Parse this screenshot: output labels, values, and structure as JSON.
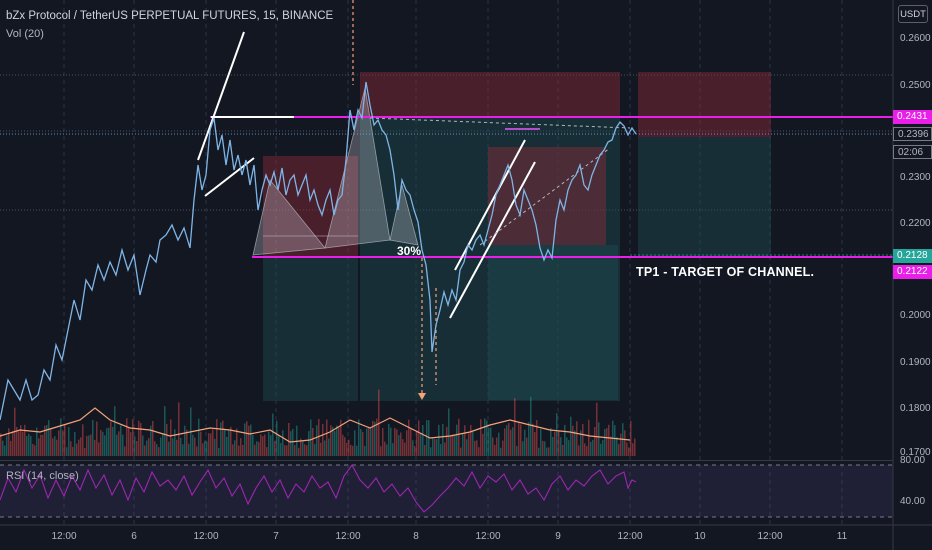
{
  "header": {
    "symbol_title": "bZx Protocol / TetherUS PERPETUAL FUTURES, 15, BINANCE",
    "volume_indicator": "Vol (20)",
    "rsi_indicator": "RSI (14, close)"
  },
  "price_axis": {
    "currency_button": "USDT",
    "ticks": [
      "0.2600",
      "0.2500",
      "0.2300",
      "0.2200",
      "0.2000",
      "0.1900",
      "0.1800",
      "0.1700"
    ],
    "badges": {
      "resistance": "0.2431",
      "current_price": "0.2396",
      "countdown": "02:06",
      "support_upper": "0.2128",
      "support_lower": "0.2122"
    }
  },
  "rsi_axis": {
    "ticks": [
      "80.00",
      "40.00"
    ]
  },
  "time_axis": {
    "ticks": [
      "12:00",
      "6",
      "12:00",
      "7",
      "12:00",
      "8",
      "12:00",
      "9",
      "12:00",
      "10",
      "12:00",
      "11"
    ]
  },
  "annotations": {
    "target_text": "TP1 - TARGET OF CHANNEL.",
    "percent_label": "30%"
  },
  "colors": {
    "background": "#131722",
    "price_line": "#7fb5e6",
    "level_line": "#e91ee8",
    "rsi_line": "#9c27b0",
    "volume_ma": "#f7a27a",
    "green_badge": "#26a69a"
  }
}
